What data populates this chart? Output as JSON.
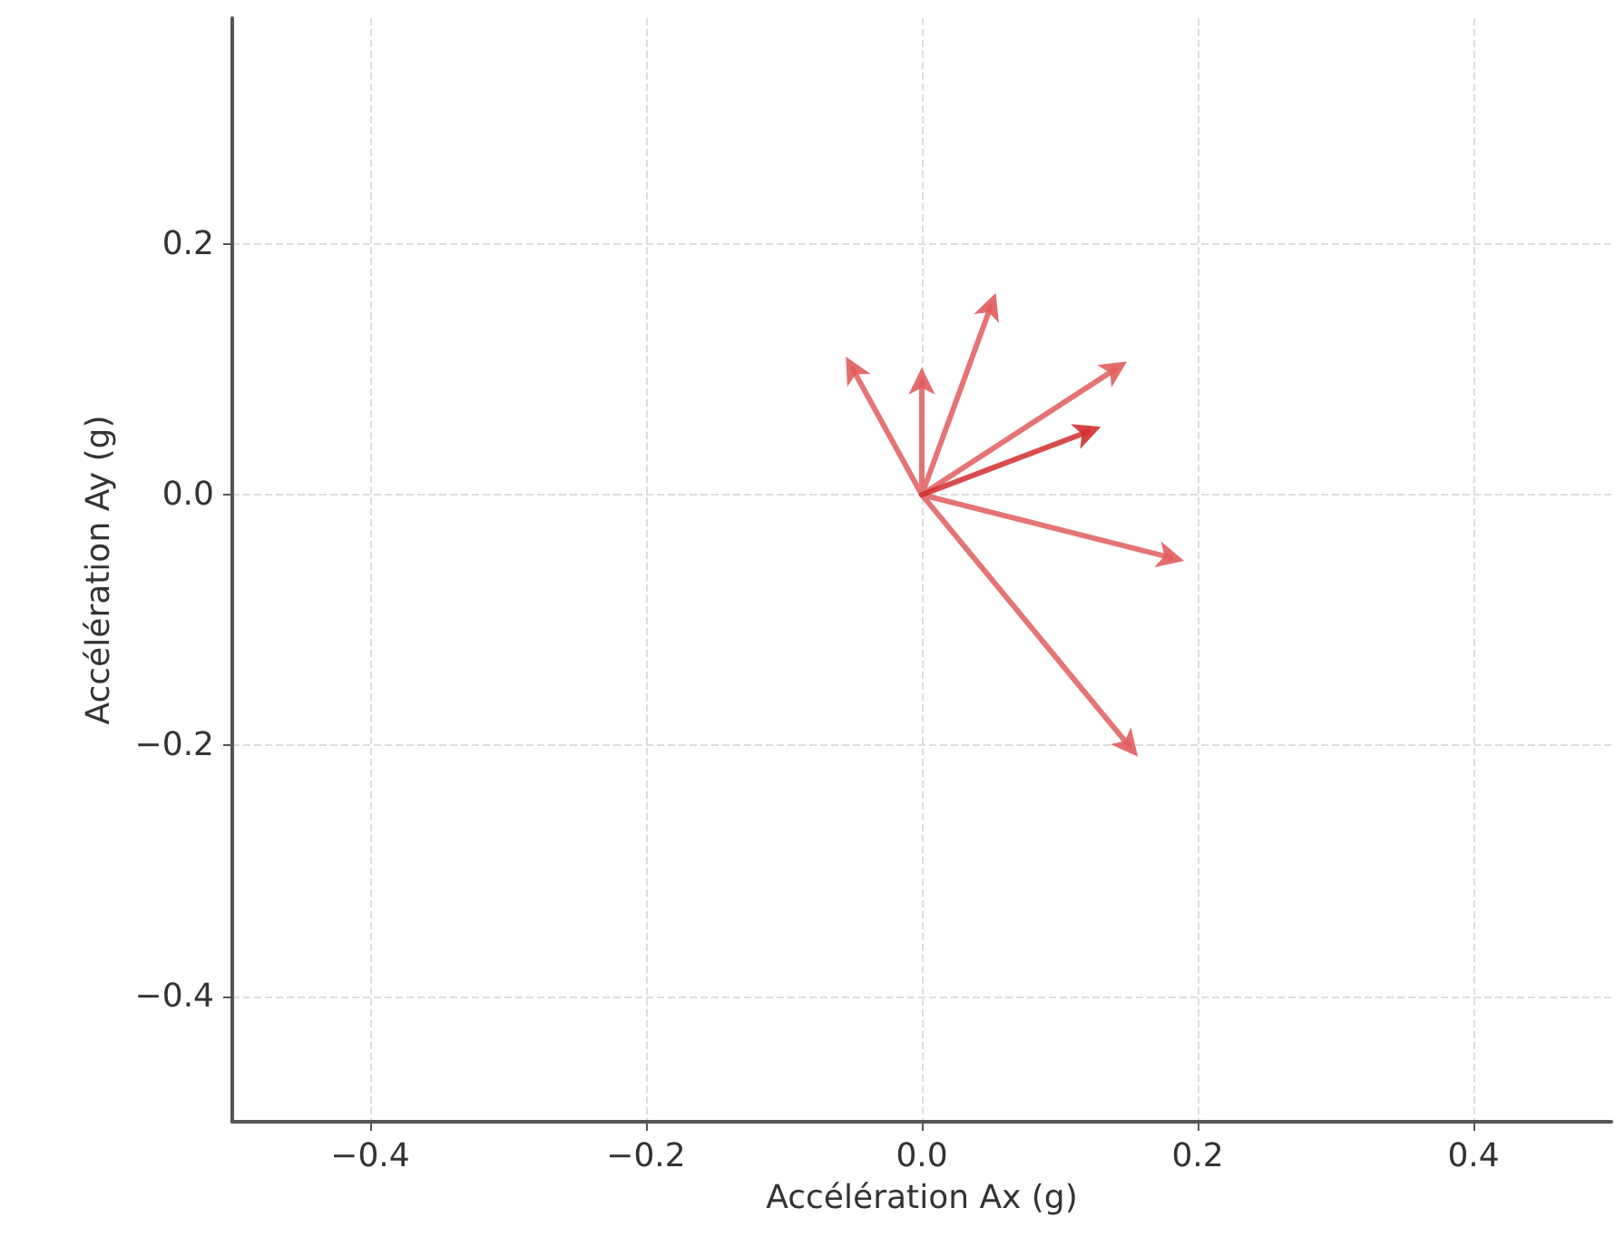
{
  "chart_data": {
    "type": "line",
    "xlabel": "Accélération Ax (g)",
    "ylabel": "Accélération Ay (g)",
    "xlim": [
      -0.5,
      0.5
    ],
    "ylim": [
      -0.5,
      0.38
    ],
    "xticks": [
      {
        "value": -0.4,
        "label": "−0.4"
      },
      {
        "value": -0.2,
        "label": "−0.2"
      },
      {
        "value": 0,
        "label": "0.0"
      },
      {
        "value": 0.2,
        "label": "0.2"
      },
      {
        "value": 0.4,
        "label": "0.4"
      }
    ],
    "yticks": [
      {
        "value": -0.4,
        "label": "−0.4"
      },
      {
        "value": -0.2,
        "label": "−0.2"
      },
      {
        "value": 0,
        "label": "0.0"
      },
      {
        "value": 0.2,
        "label": "0.2"
      }
    ],
    "grid": true,
    "series": [
      {
        "color": "#e05c5c",
        "x": [
          0,
          -0.05,
          null,
          0,
          0,
          null,
          0,
          0.05,
          null,
          0,
          0.14,
          null,
          0,
          0.18,
          null,
          0,
          0.15
        ],
        "values": [
          0,
          0.1,
          null,
          0,
          0.09,
          null,
          0,
          0.15,
          null,
          0,
          0.1,
          null,
          0,
          -0.05,
          null,
          0,
          -0.2
        ]
      },
      {
        "color": "#d42c2c",
        "x": [
          0,
          0.12
        ],
        "values": [
          0,
          0.05
        ]
      }
    ]
  }
}
